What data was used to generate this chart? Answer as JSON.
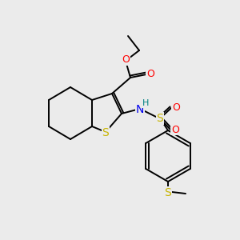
{
  "background_color": "#ebebeb",
  "bond_color": "#000000",
  "atom_colors": {
    "S": "#c8b400",
    "O": "#ff0000",
    "N": "#0000ee",
    "H": "#008080",
    "C": "#000000"
  },
  "figsize": [
    3.0,
    3.0
  ],
  "dpi": 100
}
